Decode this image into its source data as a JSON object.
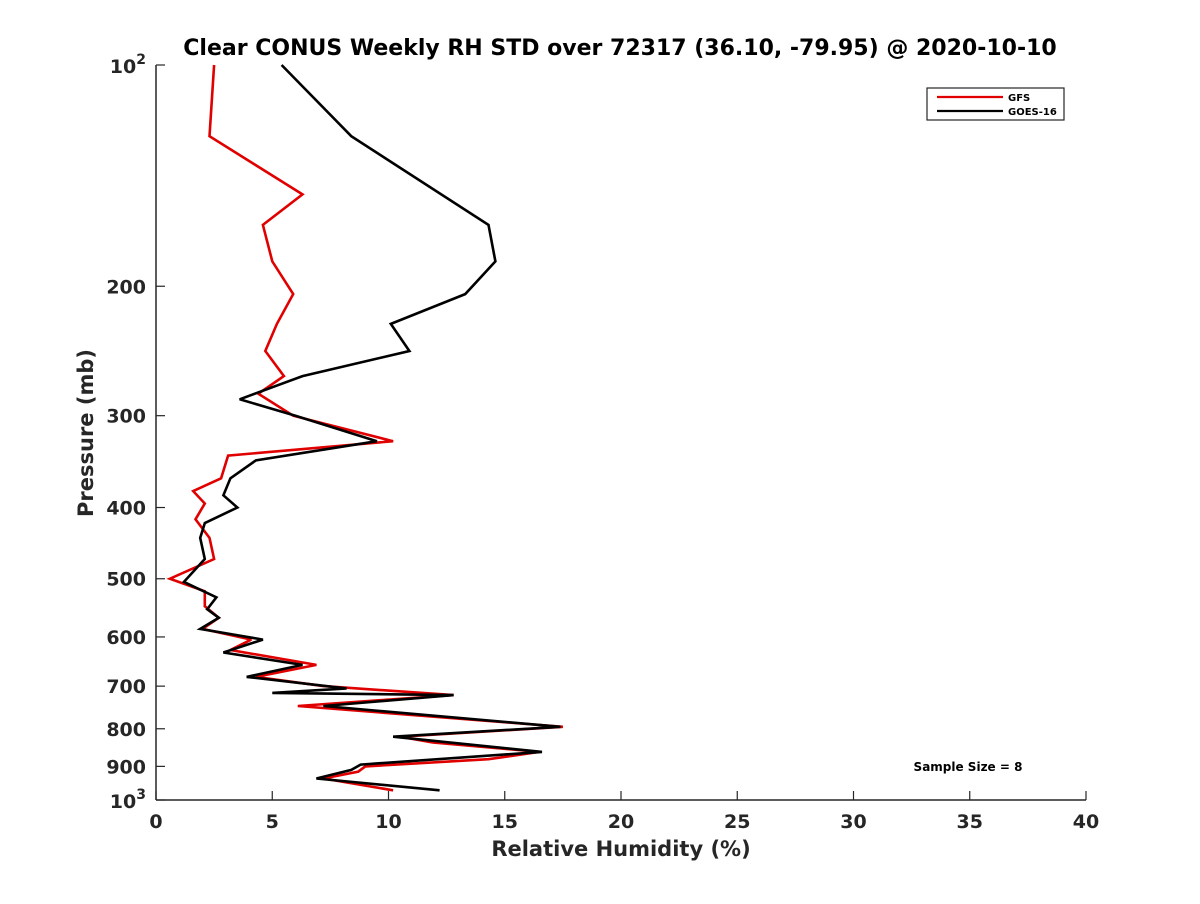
{
  "chart_data": {
    "type": "line",
    "title": "Clear CONUS Weekly RH STD over 72317 (36.10, -79.95) @ 2020-10-10",
    "xlabel": "Relative Humidity (%)",
    "ylabel": "Pressure (mb)",
    "xlim": [
      0,
      40
    ],
    "ylim": [
      100,
      1000
    ],
    "y_scale": "log",
    "y_reversed": true,
    "x_ticks": [
      0,
      5,
      10,
      15,
      20,
      25,
      30,
      35,
      40
    ],
    "x_tick_labels": [
      "0",
      "5",
      "10",
      "15",
      "20",
      "25",
      "30",
      "35",
      "40"
    ],
    "y_ticks": [
      100,
      200,
      300,
      400,
      500,
      600,
      700,
      800,
      900,
      1000
    ],
    "y_tick_labels": [
      "10²",
      "200",
      "300",
      "400",
      "500",
      "600",
      "700",
      "800",
      "900",
      "10³"
    ],
    "grid": false,
    "legend_position": "top-right",
    "annotation": "Sample Size = 8",
    "series": [
      {
        "name": "GFS",
        "color": "#e00000",
        "points": [
          [
            2.5,
            100
          ],
          [
            2.3,
            125
          ],
          [
            6.3,
            150
          ],
          [
            4.6,
            165
          ],
          [
            5.0,
            185
          ],
          [
            5.9,
            205
          ],
          [
            5.2,
            225
          ],
          [
            4.7,
            245
          ],
          [
            5.5,
            265
          ],
          [
            4.4,
            280
          ],
          [
            5.9,
            300
          ],
          [
            10.2,
            325
          ],
          [
            3.1,
            340
          ],
          [
            2.8,
            365
          ],
          [
            1.6,
            380
          ],
          [
            2.1,
            395
          ],
          [
            1.7,
            415
          ],
          [
            2.3,
            440
          ],
          [
            2.5,
            470
          ],
          [
            0.6,
            500
          ],
          [
            2.1,
            520
          ],
          [
            2.1,
            545
          ],
          [
            2.7,
            565
          ],
          [
            2.0,
            585
          ],
          [
            4.1,
            605
          ],
          [
            3.2,
            625
          ],
          [
            6.9,
            655
          ],
          [
            4.3,
            680
          ],
          [
            7.2,
            700
          ],
          [
            12.8,
            720
          ],
          [
            6.1,
            745
          ],
          [
            17.5,
            795
          ],
          [
            10.5,
            820
          ],
          [
            11.9,
            835
          ],
          [
            16.5,
            860
          ],
          [
            14.3,
            880
          ],
          [
            9.0,
            900
          ],
          [
            8.7,
            915
          ],
          [
            7.2,
            935
          ],
          [
            10.2,
            970
          ]
        ]
      },
      {
        "name": "GOES-16",
        "color": "#000000",
        "points": [
          [
            5.4,
            100
          ],
          [
            8.4,
            125
          ],
          [
            14.3,
            165
          ],
          [
            14.6,
            185
          ],
          [
            13.3,
            205
          ],
          [
            10.1,
            225
          ],
          [
            10.9,
            245
          ],
          [
            6.3,
            265
          ],
          [
            3.6,
            285
          ],
          [
            6.0,
            300
          ],
          [
            9.5,
            325
          ],
          [
            4.3,
            345
          ],
          [
            3.2,
            365
          ],
          [
            2.9,
            385
          ],
          [
            3.5,
            400
          ],
          [
            2.1,
            420
          ],
          [
            1.9,
            440
          ],
          [
            2.1,
            470
          ],
          [
            1.2,
            505
          ],
          [
            2.6,
            530
          ],
          [
            2.2,
            550
          ],
          [
            2.7,
            565
          ],
          [
            1.9,
            585
          ],
          [
            4.6,
            605
          ],
          [
            2.9,
            630
          ],
          [
            6.3,
            655
          ],
          [
            3.9,
            680
          ],
          [
            8.2,
            705
          ],
          [
            5.0,
            715
          ],
          [
            12.8,
            720
          ],
          [
            7.2,
            745
          ],
          [
            17.4,
            795
          ],
          [
            10.2,
            820
          ],
          [
            16.6,
            860
          ],
          [
            8.8,
            895
          ],
          [
            8.4,
            910
          ],
          [
            6.9,
            935
          ],
          [
            12.2,
            970
          ]
        ]
      }
    ]
  }
}
